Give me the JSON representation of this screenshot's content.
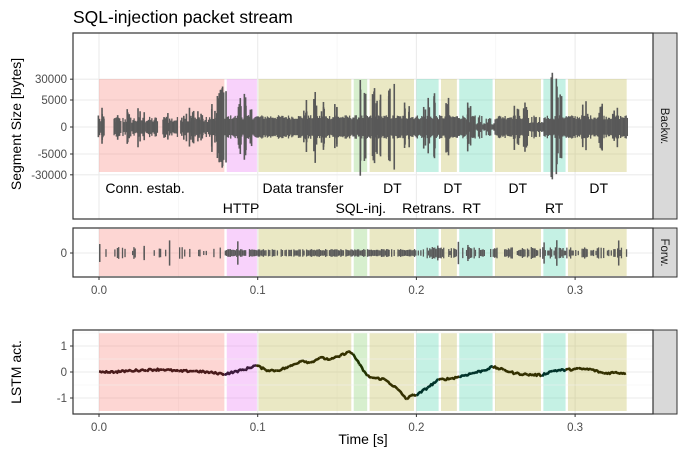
{
  "chart_data": {
    "type": "faceted-bar-line",
    "title": "SQL-injection packet stream",
    "xlabel": "Time [s]",
    "xlim": [
      -0.015,
      0.352
    ],
    "x_ticks": [
      0.0,
      0.1,
      0.2,
      0.3
    ],
    "x_tick_labels": [
      "0.0",
      "0.1",
      "0.2",
      "0.3"
    ],
    "grid": true,
    "phases": [
      {
        "name": "Conn. estab.",
        "start": 0.0,
        "end": 0.079,
        "color": "#F8766D"
      },
      {
        "name": "HTTP",
        "start": 0.0805,
        "end": 0.0995,
        "color": "#E76BF3"
      },
      {
        "name": "Data transfer",
        "start": 0.1005,
        "end": 0.159,
        "color": "#B9B33A"
      },
      {
        "name": "SQL-inj.",
        "start": 0.1605,
        "end": 0.169,
        "color": "#7CCB5C"
      },
      {
        "name": "DT",
        "start": 0.1705,
        "end": 0.1985,
        "color": "#B9B33A"
      },
      {
        "name": "Retrans.",
        "start": 0.2,
        "end": 0.214,
        "color": "#3FD1A5"
      },
      {
        "name": "DT",
        "start": 0.2155,
        "end": 0.2255,
        "color": "#B9B33A"
      },
      {
        "name": "RT",
        "start": 0.227,
        "end": 0.248,
        "color": "#3FD1A5"
      },
      {
        "name": "DT",
        "start": 0.2495,
        "end": 0.2785,
        "color": "#B9B33A"
      },
      {
        "name": "RT",
        "start": 0.28,
        "end": 0.294,
        "color": "#3FD1A5"
      },
      {
        "name": "DT",
        "start": 0.2955,
        "end": 0.3325,
        "color": "#B9B33A"
      }
    ],
    "phase_labels": [
      {
        "text": "Conn. estab.",
        "x": 0.004,
        "row": "upper"
      },
      {
        "text": "HTTP",
        "x": 0.078,
        "row": "lower"
      },
      {
        "text": "Data transfer",
        "x": 0.103,
        "row": "upper"
      },
      {
        "text": "SQL-inj.",
        "x": 0.149,
        "row": "lower"
      },
      {
        "text": "DT",
        "x": 0.179,
        "row": "upper"
      },
      {
        "text": "Retrans.",
        "x": 0.191,
        "row": "lower"
      },
      {
        "text": "DT",
        "x": 0.217,
        "row": "upper"
      },
      {
        "text": "RT",
        "x": 0.229,
        "row": "lower"
      },
      {
        "text": "DT",
        "x": 0.258,
        "row": "upper"
      },
      {
        "text": "RT",
        "x": 0.281,
        "row": "lower"
      },
      {
        "text": "DT",
        "x": 0.309,
        "row": "upper"
      }
    ],
    "panels": [
      {
        "id": "backward",
        "strip": "Backw.",
        "type": "bar",
        "ylabel": "Segment Size [bytes]",
        "y_scale": "pseudo-log",
        "y_ticks": [
          -30000,
          -5000,
          0,
          5000,
          30000
        ],
        "y_tick_labels": [
          "-30000",
          "-5000",
          "0",
          "5000",
          "30000"
        ],
        "ylim": [
          -90000,
          90000
        ],
        "bar_color": "#595959",
        "series_note": "packet segment sizes shown as symmetric bars per packet",
        "bursts": [
          {
            "t": 0.001,
            "max": 2500
          },
          {
            "t": 0.011,
            "max": 1200
          },
          {
            "t": 0.017,
            "max": 2200
          },
          {
            "t": 0.026,
            "max": 2400
          },
          {
            "t": 0.034,
            "max": 800
          },
          {
            "t": 0.042,
            "max": 1500
          },
          {
            "t": 0.053,
            "max": 1400
          },
          {
            "t": 0.058,
            "max": 2500
          },
          {
            "t": 0.063,
            "max": 1800
          },
          {
            "t": 0.072,
            "max": 3500
          },
          {
            "t": 0.075,
            "max": 12000
          },
          {
            "t": 0.077,
            "max": 14000
          },
          {
            "t": 0.078,
            "max": 16000
          },
          {
            "t": 0.09,
            "max": 8500
          },
          {
            "t": 0.087,
            "max": 3500
          },
          {
            "t": 0.094,
            "max": 3000
          },
          {
            "t": 0.135,
            "max": 10000
          },
          {
            "t": 0.129,
            "max": 5000
          },
          {
            "t": 0.141,
            "max": 4200
          },
          {
            "t": 0.149,
            "max": 3500
          },
          {
            "t": 0.166,
            "max": 28000
          },
          {
            "t": 0.172,
            "max": 14000
          },
          {
            "t": 0.176,
            "max": 8000
          },
          {
            "t": 0.184,
            "max": 20000
          },
          {
            "t": 0.194,
            "max": 4000
          },
          {
            "t": 0.206,
            "max": 6000
          },
          {
            "t": 0.211,
            "max": 9000
          },
          {
            "t": 0.22,
            "max": 6000
          },
          {
            "t": 0.233,
            "max": 4000
          },
          {
            "t": 0.262,
            "max": 3000
          },
          {
            "t": 0.269,
            "max": 4000
          },
          {
            "t": 0.286,
            "max": 52000
          },
          {
            "t": 0.29,
            "max": 16000
          },
          {
            "t": 0.306,
            "max": 4500
          },
          {
            "t": 0.315,
            "max": 3600
          },
          {
            "t": 0.325,
            "max": 2500
          }
        ]
      },
      {
        "id": "forward",
        "strip": "Forw.",
        "type": "bar",
        "ylabel": "",
        "y_ticks": [
          0
        ],
        "y_tick_labels": [
          "0"
        ],
        "bar_color": "#595959"
      },
      {
        "id": "lstm",
        "strip": "",
        "type": "line",
        "ylabel": "LSTM act.",
        "y_ticks": [
          -1,
          0,
          1
        ],
        "y_tick_labels": [
          "-1",
          "0",
          "1"
        ],
        "ylim": [
          -1.45,
          1.65
        ],
        "points": [
          [
            0.0,
            0.02
          ],
          [
            0.01,
            0.0
          ],
          [
            0.02,
            0.05
          ],
          [
            0.03,
            0.08
          ],
          [
            0.04,
            0.1
          ],
          [
            0.05,
            0.03
          ],
          [
            0.06,
            0.04
          ],
          [
            0.07,
            -0.02
          ],
          [
            0.079,
            -0.08
          ],
          [
            0.085,
            0.0
          ],
          [
            0.092,
            0.1
          ],
          [
            0.099,
            0.26
          ],
          [
            0.105,
            0.08
          ],
          [
            0.112,
            0.05
          ],
          [
            0.12,
            0.2
          ],
          [
            0.128,
            0.45
          ],
          [
            0.133,
            0.35
          ],
          [
            0.139,
            0.55
          ],
          [
            0.146,
            0.48
          ],
          [
            0.152,
            0.62
          ],
          [
            0.157,
            0.78
          ],
          [
            0.16,
            0.7
          ],
          [
            0.164,
            0.3
          ],
          [
            0.169,
            -0.15
          ],
          [
            0.172,
            -0.22
          ],
          [
            0.18,
            -0.28
          ],
          [
            0.188,
            -0.65
          ],
          [
            0.194,
            -1.05
          ],
          [
            0.198,
            -0.85
          ],
          [
            0.2,
            -0.9
          ],
          [
            0.207,
            -0.6
          ],
          [
            0.214,
            -0.3
          ],
          [
            0.222,
            -0.25
          ],
          [
            0.227,
            -0.18
          ],
          [
            0.235,
            -0.05
          ],
          [
            0.242,
            0.05
          ],
          [
            0.248,
            0.2
          ],
          [
            0.255,
            0.08
          ],
          [
            0.262,
            -0.05
          ],
          [
            0.27,
            -0.1
          ],
          [
            0.279,
            -0.12
          ],
          [
            0.286,
            0.05
          ],
          [
            0.294,
            0.08
          ],
          [
            0.302,
            0.12
          ],
          [
            0.31,
            0.1
          ],
          [
            0.318,
            -0.05
          ],
          [
            0.325,
            -0.02
          ],
          [
            0.332,
            -0.05
          ]
        ],
        "line_colors": {
          "Conn. estab.": "#4a1a1a",
          "HTTP": "#3d1a3d",
          "Data transfer": "#333000",
          "DT": "#333000",
          "SQL-inj.": "#1f3300",
          "Retrans.": "#00332a",
          "RT": "#00332a"
        }
      }
    ]
  }
}
